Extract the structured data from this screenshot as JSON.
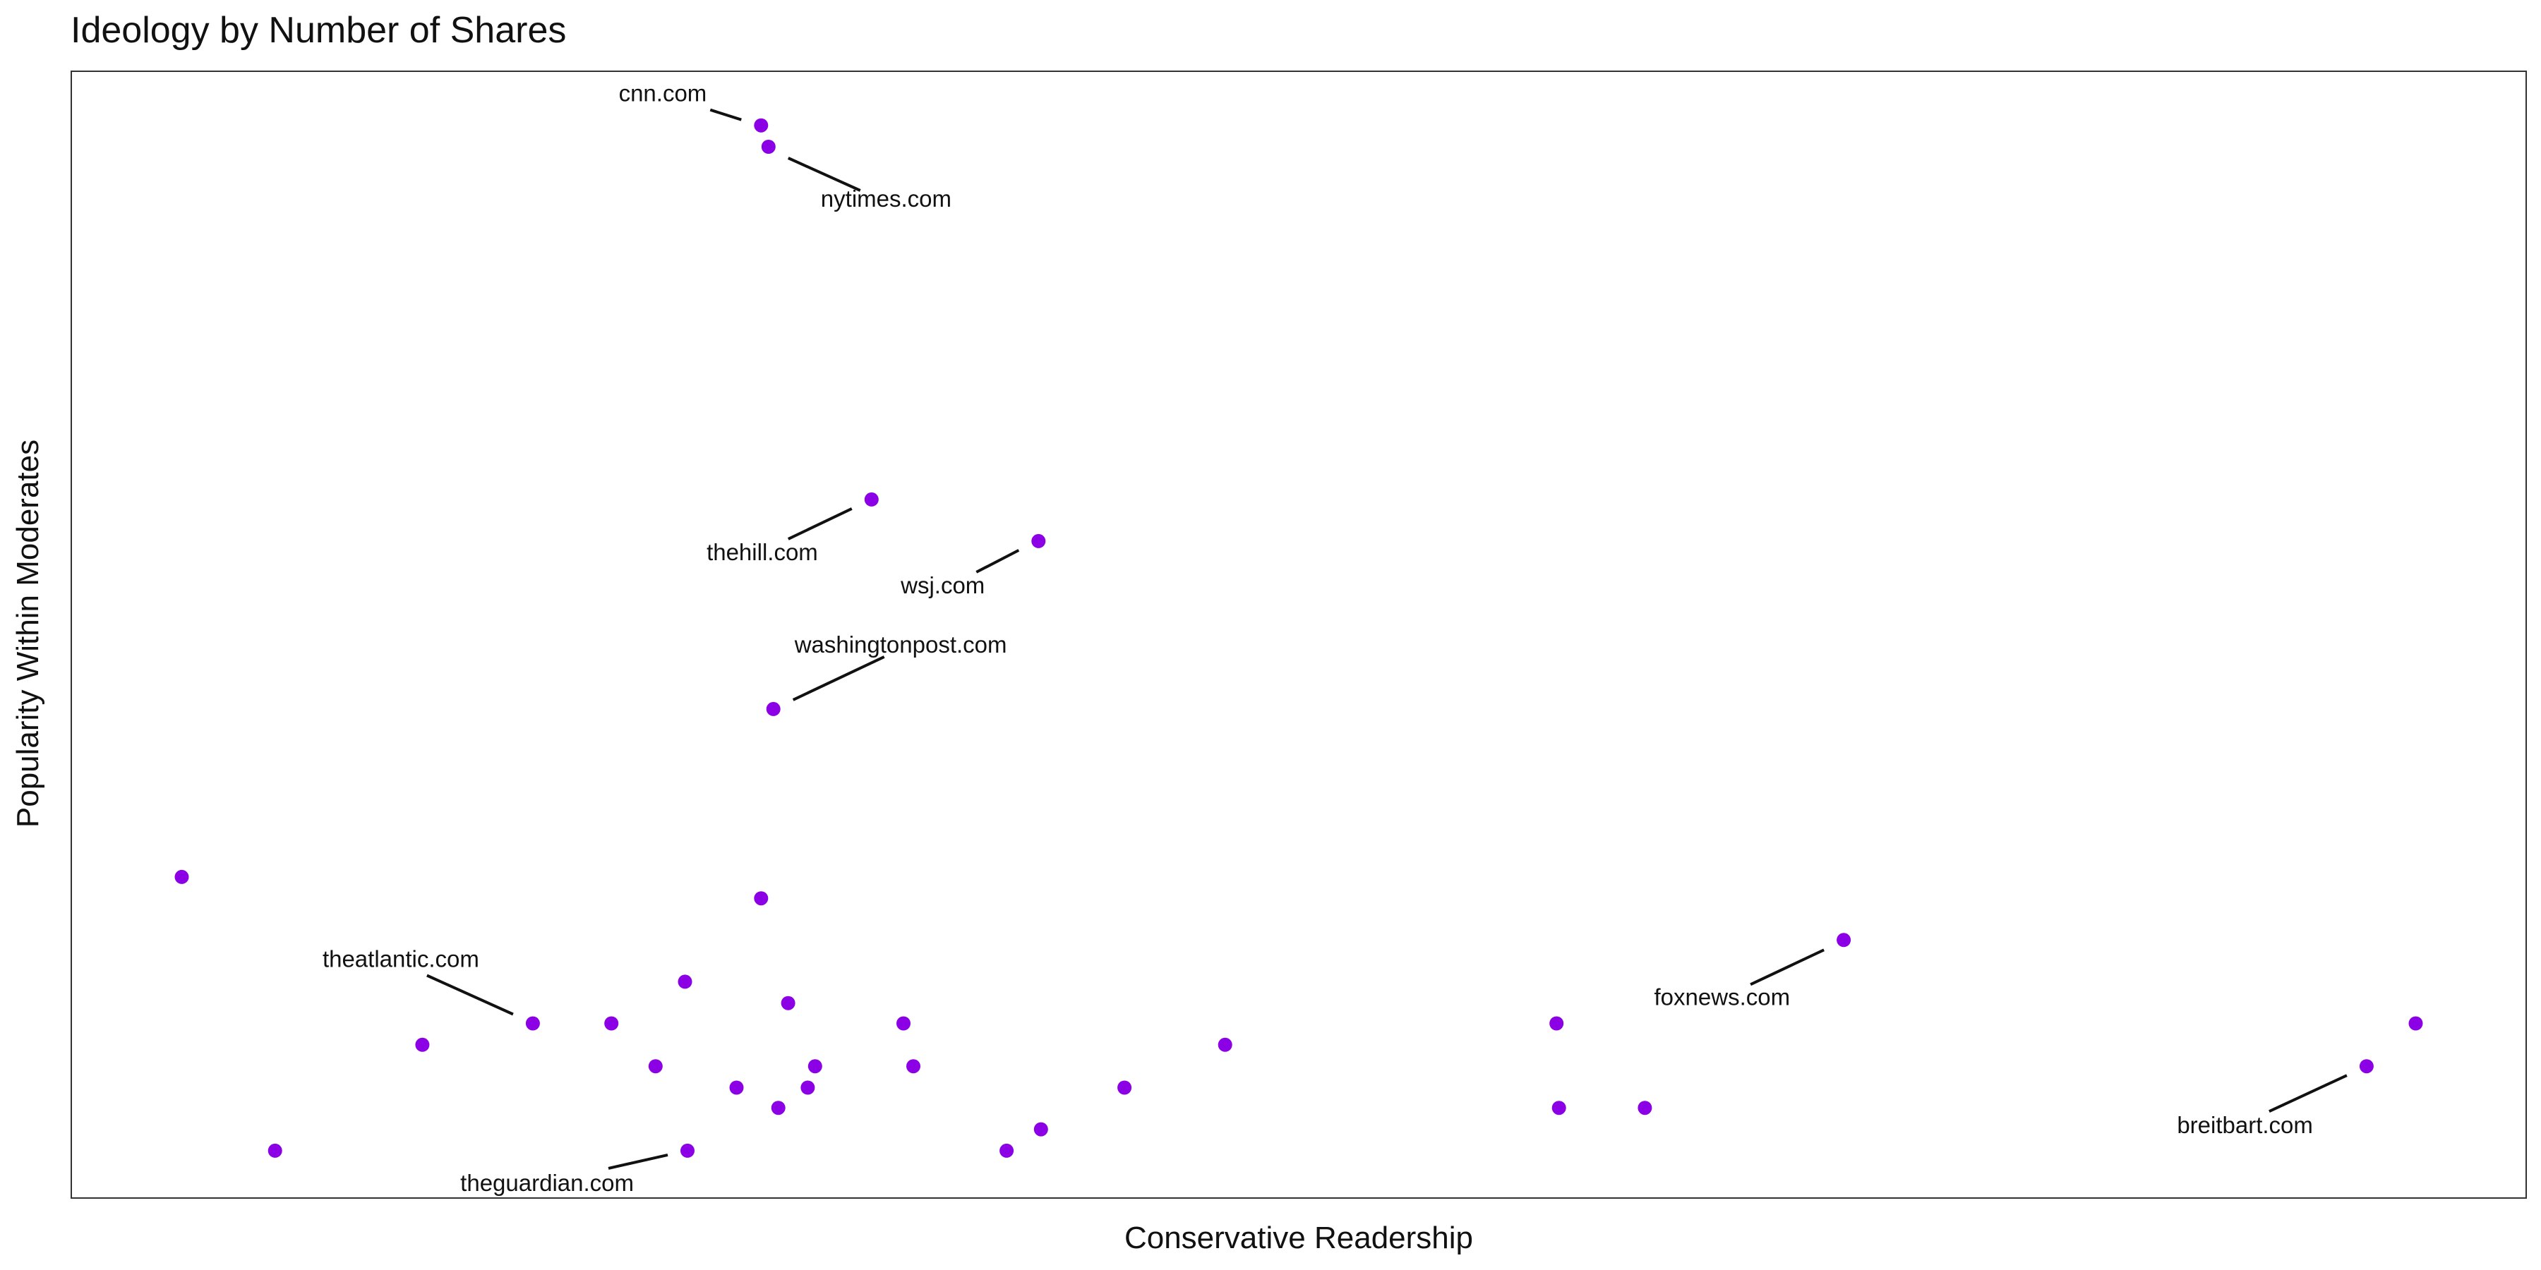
{
  "chart_data": {
    "type": "scatter",
    "title": "Ideology by Number of Shares",
    "xlabel": "Conservative Readership",
    "ylabel": "Popularity Within Moderates",
    "xlim": [
      0,
      100
    ],
    "ylim": [
      0,
      100
    ],
    "x_ticks": "none",
    "y_ticks": "none",
    "grid": false,
    "point_color": "#8c00e6",
    "points": [
      {
        "x": 28.1,
        "y": 95.2,
        "label": "cnn.com"
      },
      {
        "x": 28.4,
        "y": 93.3,
        "label": "nytimes.com"
      },
      {
        "x": 32.6,
        "y": 62.0,
        "label": "thehill.com"
      },
      {
        "x": 39.4,
        "y": 58.3,
        "label": "wsj.com"
      },
      {
        "x": 28.6,
        "y": 43.4,
        "label": "washingtonpost.com"
      },
      {
        "x": 4.5,
        "y": 28.5
      },
      {
        "x": 28.1,
        "y": 26.6
      },
      {
        "x": 72.2,
        "y": 22.9,
        "label": "foxnews.com"
      },
      {
        "x": 25.0,
        "y": 19.2
      },
      {
        "x": 29.2,
        "y": 17.3
      },
      {
        "x": 18.8,
        "y": 15.5,
        "label": "theatlantic.com"
      },
      {
        "x": 22.0,
        "y": 15.5
      },
      {
        "x": 33.9,
        "y": 15.5
      },
      {
        "x": 60.5,
        "y": 15.5
      },
      {
        "x": 95.5,
        "y": 15.5
      },
      {
        "x": 14.3,
        "y": 13.6
      },
      {
        "x": 47.0,
        "y": 13.6
      },
      {
        "x": 23.8,
        "y": 11.7
      },
      {
        "x": 30.3,
        "y": 11.7
      },
      {
        "x": 34.3,
        "y": 11.7
      },
      {
        "x": 93.5,
        "y": 11.7,
        "label": "breitbart.com"
      },
      {
        "x": 27.1,
        "y": 9.8
      },
      {
        "x": 30.0,
        "y": 9.8
      },
      {
        "x": 42.9,
        "y": 9.8
      },
      {
        "x": 28.8,
        "y": 8.0
      },
      {
        "x": 60.6,
        "y": 8.0
      },
      {
        "x": 64.1,
        "y": 8.0
      },
      {
        "x": 39.5,
        "y": 6.1
      },
      {
        "x": 8.3,
        "y": 4.2
      },
      {
        "x": 25.1,
        "y": 4.2,
        "label": "theguardian.com"
      },
      {
        "x": 38.1,
        "y": 4.2
      }
    ]
  }
}
